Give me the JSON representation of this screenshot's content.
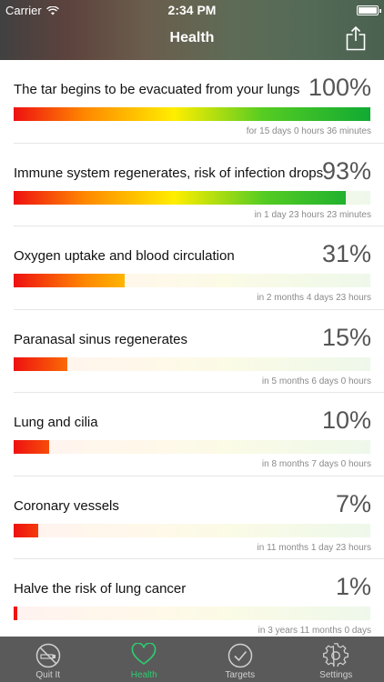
{
  "status_bar": {
    "carrier": "Carrier",
    "time": "2:34 PM"
  },
  "header": {
    "title": "Health"
  },
  "list": [
    {
      "title": "The tar begins to be evacuated from your lungs",
      "percent_text": "100%",
      "percent": 100,
      "eta": "for 15 days 0 hours 36 minutes"
    },
    {
      "title": "Immune system regenerates, risk of infection drops",
      "percent_text": "93%",
      "percent": 93,
      "eta": "in 1 day 23 hours 23 minutes"
    },
    {
      "title": "Oxygen uptake and blood circulation",
      "percent_text": "31%",
      "percent": 31,
      "eta": "in 2 months 4 days 23 hours"
    },
    {
      "title": "Paranasal sinus regenerates",
      "percent_text": "15%",
      "percent": 15,
      "eta": "in 5 months 6 days 0 hours"
    },
    {
      "title": "Lung and cilia",
      "percent_text": "10%",
      "percent": 10,
      "eta": "in 8 months 7 days 0 hours"
    },
    {
      "title": "Coronary vessels",
      "percent_text": "7%",
      "percent": 7,
      "eta": "in 11 months 1 day 23 hours"
    },
    {
      "title": "Halve the risk of lung cancer",
      "percent_text": "1%",
      "percent": 1,
      "eta": "in 3 years 11 months 0 days"
    }
  ],
  "tabbar": {
    "tabs": [
      {
        "label": "Quit It",
        "icon": "no-smoking-icon"
      },
      {
        "label": "Health",
        "icon": "heart-icon"
      },
      {
        "label": "Targets",
        "icon": "checkmark-icon"
      },
      {
        "label": "Settings",
        "icon": "gear-icon"
      }
    ],
    "active_index": 1
  },
  "colors": {
    "accent": "#2ecc71",
    "tabbar_bg": "#5a5a5a",
    "bar_start": "#ee1111",
    "bar_mid": "#ffee00",
    "bar_end": "#11aa33"
  }
}
